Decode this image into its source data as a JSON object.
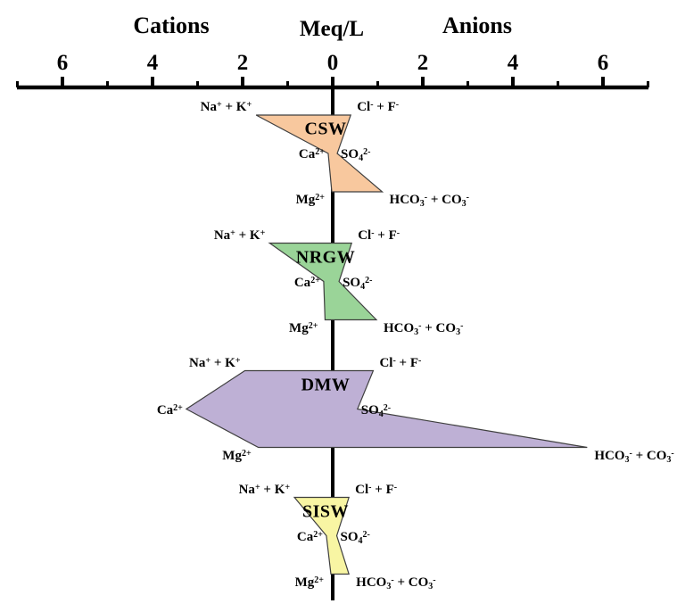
{
  "chart_data": {
    "type": "stiff-diagram",
    "left_header": "Cations",
    "unit_label": "Meq/L",
    "right_header": "Anions",
    "axis": {
      "orientation": "horizontal-mirrored",
      "range_meq_l_each_side": [
        0,
        7
      ],
      "major_tick_labels": [
        "6",
        "4",
        "2",
        "0",
        "2",
        "4",
        "6"
      ],
      "minor_tick_values_signed": [
        -7,
        -5,
        -3,
        -1,
        1,
        3,
        5,
        7
      ],
      "grid": false
    },
    "ion_rows": [
      {
        "left_key": "na_k",
        "right_key": "cl_f"
      },
      {
        "left_key": "ca",
        "right_key": "so4"
      },
      {
        "left_key": "mg",
        "right_key": "hco3_co3"
      }
    ],
    "ion_labels": {
      "na_k": [
        [
          "t",
          "Na"
        ],
        [
          "sup",
          "+"
        ],
        [
          "t",
          " + K"
        ],
        [
          "sup",
          "+"
        ]
      ],
      "cl_f": [
        [
          "t",
          "Cl"
        ],
        [
          "sup",
          "-"
        ],
        [
          "t",
          " + F"
        ],
        [
          "sup",
          "-"
        ]
      ],
      "ca": [
        [
          "t",
          "Ca"
        ],
        [
          "sup",
          "2+"
        ]
      ],
      "so4": [
        [
          "t",
          "SO"
        ],
        [
          "sub",
          "4"
        ],
        [
          "sup",
          "2-"
        ]
      ],
      "mg": [
        [
          "t",
          "Mg"
        ],
        [
          "sup",
          "2+"
        ]
      ],
      "hco3_co3": [
        [
          "t",
          "HCO"
        ],
        [
          "sub",
          "3"
        ],
        [
          "sup",
          "-"
        ],
        [
          "t",
          " + CO"
        ],
        [
          "sub",
          "3"
        ],
        [
          "sup",
          "-"
        ]
      ]
    },
    "groups": [
      {
        "name": "CSW",
        "fill_color": "#F8C89E",
        "values_meq_l": {
          "na_k": 1.7,
          "cl_f": 0.4,
          "ca": 0.1,
          "so4": 0.1,
          "mg": 0.02,
          "hco3_co3": 1.1
        }
      },
      {
        "name": "NRGW",
        "fill_color": "#9AD498",
        "values_meq_l": {
          "na_k": 1.4,
          "cl_f": 0.42,
          "ca": 0.2,
          "so4": 0.14,
          "mg": 0.17,
          "hco3_co3": 0.97
        }
      },
      {
        "name": "DMW",
        "fill_color": "#BEB0D5",
        "values_meq_l": {
          "na_k": 1.95,
          "cl_f": 0.9,
          "ca": 3.25,
          "so4": 0.55,
          "mg": 1.65,
          "hco3_co3": 5.65
        }
      },
      {
        "name": "SISW",
        "fill_color": "#F8F5A3",
        "values_meq_l": {
          "na_k": 0.85,
          "cl_f": 0.36,
          "ca": 0.14,
          "so4": 0.09,
          "mg": 0.04,
          "hco3_co3": 0.36
        }
      }
    ],
    "outline_color": "#3F3F3F",
    "axis_color": "#000000"
  }
}
